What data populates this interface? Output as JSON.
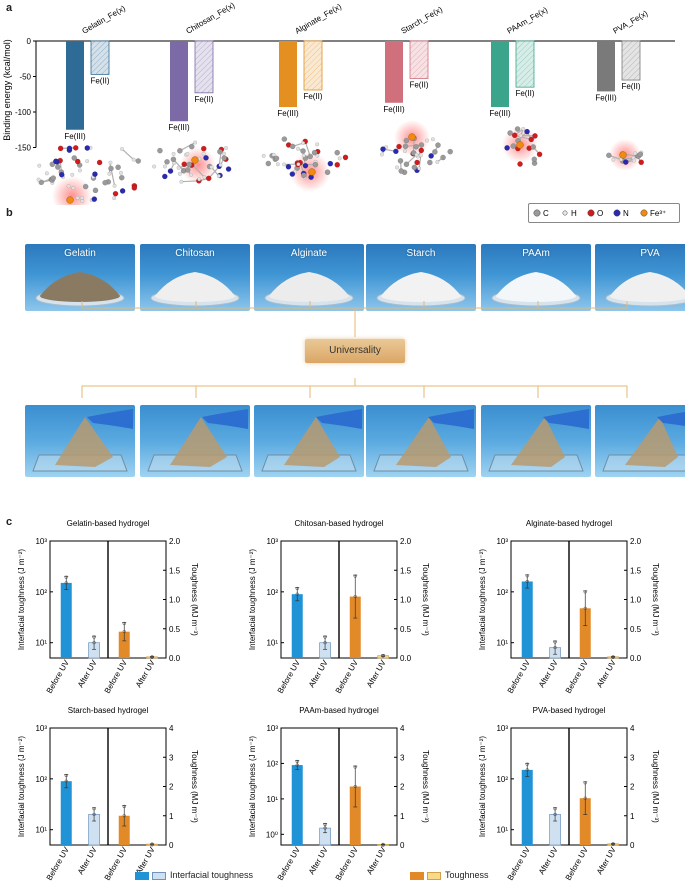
{
  "panels": {
    "a": "a",
    "b": "b",
    "c": "c"
  },
  "panel_a": {
    "ylabel": "Binding energy (kcal/mol)",
    "yticks": [
      "0",
      "-50",
      "-100",
      "-150"
    ],
    "legend": [
      {
        "label": "C",
        "color": "#9a9a9a"
      },
      {
        "label": "H",
        "color": "#e6e6e6"
      },
      {
        "label": "O",
        "color": "#d01c1c"
      },
      {
        "label": "N",
        "color": "#2a2ab0"
      },
      {
        "label": "Fe³⁺",
        "color": "#f08a10"
      }
    ]
  },
  "chart_data": [
    {
      "type": "bar",
      "ylabel": "Binding energy (kcal/mol)",
      "ylim": [
        -150,
        0
      ],
      "groups": [
        {
          "name": "Gelatin_Fe(x)",
          "color": "#2e6b97",
          "bars": [
            {
              "label": "Fe(III)",
              "value": -125
            },
            {
              "label": "Fe(II)",
              "value": -47
            }
          ]
        },
        {
          "name": "Chitosan_Fe(x)",
          "color": "#7c6aa6",
          "bars": [
            {
              "label": "Fe(III)",
              "value": -113
            },
            {
              "label": "Fe(II)",
              "value": -73
            }
          ]
        },
        {
          "name": "Alginate_Fe(x)",
          "color": "#e39020",
          "bars": [
            {
              "label": "Fe(III)",
              "value": -93
            },
            {
              "label": "Fe(II)",
              "value": -69
            }
          ]
        },
        {
          "name": "Starch_Fe(x)",
          "color": "#d0707c",
          "bars": [
            {
              "label": "Fe(III)",
              "value": -87
            },
            {
              "label": "Fe(II)",
              "value": -53
            }
          ]
        },
        {
          "name": "PAAm_Fe(x)",
          "color": "#3aa58a",
          "bars": [
            {
              "label": "Fe(III)",
              "value": -93
            },
            {
              "label": "Fe(II)",
              "value": -65
            }
          ]
        },
        {
          "name": "PVA_Fe(x)",
          "color": "#7a7a7a",
          "bars": [
            {
              "label": "Fe(III)",
              "value": -71
            },
            {
              "label": "Fe(II)",
              "value": -55
            }
          ]
        }
      ]
    },
    {
      "type": "bar",
      "title": "Gelatin-based hydrogel",
      "categories": [
        "Before UV",
        "After UV",
        "Before UV",
        "After UV"
      ],
      "ylabel": "Interfacial toughness (J m⁻²)",
      "y2label": "Toughness (MJ m⁻³)",
      "ylog": true,
      "ylim": [
        5,
        1000
      ],
      "y2lim": [
        0,
        2
      ],
      "yticks": [
        "10¹",
        "10²",
        "10³"
      ],
      "y2ticks": [
        "0.0",
        "0.5",
        "1.0",
        "1.5",
        "2.0"
      ],
      "interfacial": [
        150,
        10
      ],
      "toughness": [
        0.45,
        0.02
      ]
    },
    {
      "type": "bar",
      "title": "Chitosan-based hydrogel",
      "categories": [
        "Before UV",
        "After UV",
        "Before UV",
        "After UV"
      ],
      "ylabel": "Interfacial toughness (J m⁻²)",
      "y2label": "Toughness (MJ m⁻³)",
      "ylog": true,
      "ylim": [
        5,
        1000
      ],
      "y2lim": [
        0,
        2
      ],
      "yticks": [
        "10¹",
        "10²",
        "10³"
      ],
      "y2ticks": [
        "0.0",
        "0.5",
        "1.0",
        "1.5",
        "2.0"
      ],
      "interfacial": [
        90,
        10
      ],
      "toughness": [
        1.05,
        0.04
      ]
    },
    {
      "type": "bar",
      "title": "Alginate-based hydrogel",
      "categories": [
        "Before UV",
        "After UV",
        "Before UV",
        "After UV"
      ],
      "ylabel": "Interfacial toughness (J m⁻²)",
      "y2label": "Toughness (MJ m⁻³)",
      "ylog": true,
      "ylim": [
        5,
        1000
      ],
      "y2lim": [
        0,
        2
      ],
      "yticks": [
        "10¹",
        "10²",
        "10³"
      ],
      "y2ticks": [
        "0.0",
        "0.5",
        "1.0",
        "1.5",
        "2.0"
      ],
      "interfacial": [
        160,
        8
      ],
      "toughness": [
        0.85,
        0.02
      ]
    },
    {
      "type": "bar",
      "title": "Starch-based hydrogel",
      "categories": [
        "Before UV",
        "After UV",
        "Before UV",
        "After UV"
      ],
      "ylabel": "Interfacial toughness (J m⁻²)",
      "y2label": "Toughness (MJ m⁻³)",
      "ylog": true,
      "ylim": [
        5,
        1000
      ],
      "y2lim": [
        0,
        4
      ],
      "yticks": [
        "10¹",
        "10²",
        "10³"
      ],
      "y2ticks": [
        "0",
        "1",
        "2",
        "3",
        "4"
      ],
      "interfacial": [
        90,
        20
      ],
      "toughness": [
        1.0,
        0.03
      ]
    },
    {
      "type": "bar",
      "title": "PAAm-based hydrogel",
      "categories": [
        "Before UV",
        "After UV",
        "Before UV",
        "After UV"
      ],
      "ylabel": "Interfacial toughness (J m⁻²)",
      "y2label": "Toughness (MJ m⁻³)",
      "ylog": true,
      "ylim": [
        0.5,
        1000
      ],
      "y2lim": [
        0,
        4
      ],
      "yticks": [
        "10⁰",
        "10¹",
        "10²",
        "10³"
      ],
      "y2ticks": [
        "0",
        "1",
        "2",
        "3",
        "4"
      ],
      "interfacial": [
        90,
        1.5
      ],
      "toughness": [
        2.0,
        0.02
      ]
    },
    {
      "type": "bar",
      "title": "PVA-based hydrogel",
      "categories": [
        "Before UV",
        "After UV",
        "Before UV",
        "After UV"
      ],
      "ylabel": "Interfacial toughness (J m⁻²)",
      "y2label": "Toughness (MJ m⁻³)",
      "ylog": true,
      "ylim": [
        5,
        1000
      ],
      "y2lim": [
        0,
        4
      ],
      "yticks": [
        "10¹",
        "10²",
        "10³"
      ],
      "y2ticks": [
        "0",
        "1",
        "2",
        "3",
        "4"
      ],
      "interfacial": [
        150,
        20
      ],
      "toughness": [
        1.6,
        0.04
      ]
    }
  ],
  "panel_b": {
    "materials": [
      "Gelatin",
      "Chitosan",
      "Alginate",
      "Starch",
      "PAAm",
      "PVA"
    ],
    "center_label": "Universality"
  },
  "panel_c_legend": {
    "interfacial": "Interfacial toughness",
    "toughness": "Toughness"
  },
  "colors": {
    "interfacial": "#1f93d6",
    "interfacial_after": "#cfe1f1",
    "toughness": "#e38a28",
    "toughness_after": "#f9d98a",
    "bracket": "#e4b870"
  }
}
